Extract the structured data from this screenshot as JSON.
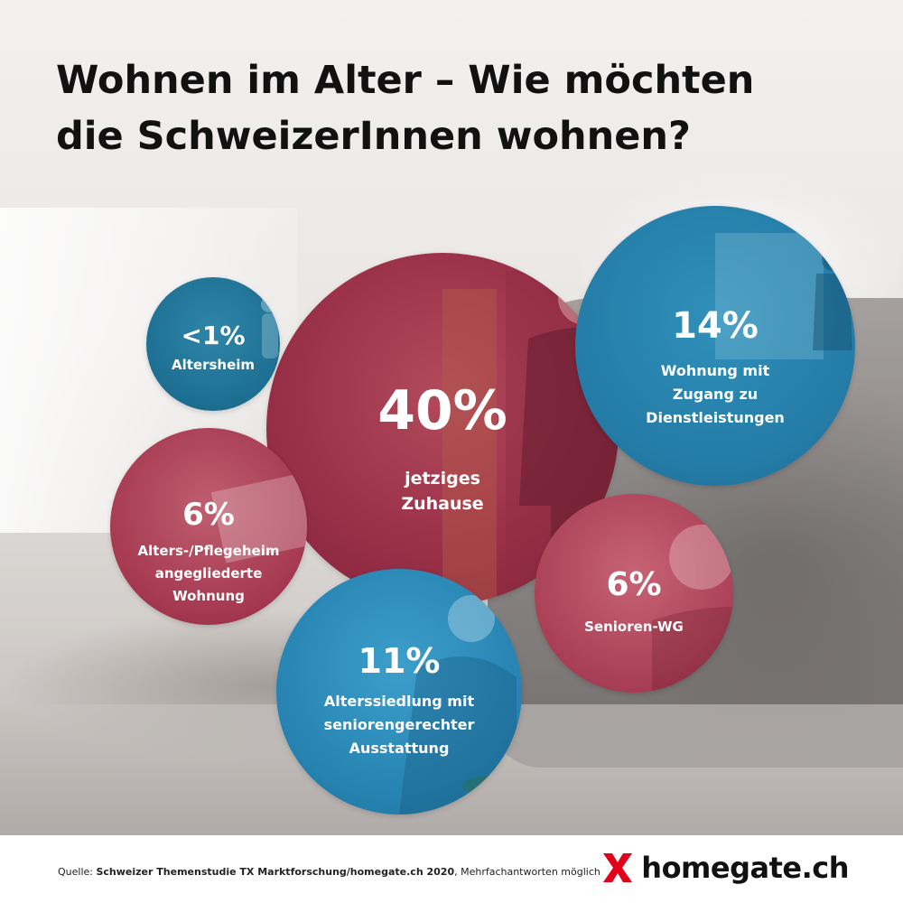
{
  "title": {
    "line1": "Wohnen im Alter – Wie möchten",
    "line2": "die SchweizerInnen wohnen?"
  },
  "bubbles": {
    "zuhause": {
      "percent": "40%",
      "label": [
        "jetziges",
        "Zuhause"
      ],
      "color": "#9a3149"
    },
    "altersheim": {
      "percent": "<1%",
      "label": [
        "Altersheim"
      ],
      "color": "#1d6f92"
    },
    "dienstleistungen": {
      "percent": "14%",
      "label": [
        "Wohnung mit",
        "Zugang zu",
        "Dienstleistungen"
      ],
      "color": "#237ba6"
    },
    "pflegeheim": {
      "percent": "6%",
      "label": [
        "Alters-/Pflegeheim",
        "angegliederte",
        "Wohnung"
      ],
      "color": "#a73b52"
    },
    "alterssiedlung": {
      "percent": "11%",
      "label": [
        "Alterssiedlung mit",
        "seniorengerechter",
        "Ausstattung"
      ],
      "color": "#2784b2"
    },
    "senioren_wg": {
      "percent": "6%",
      "label": [
        "Senioren-WG"
      ],
      "color": "#ac4258"
    }
  },
  "footer": {
    "source_prefix": "Quelle: ",
    "source_bold": "Schweizer Themenstudie TX Marktforschung/homegate.ch 2020",
    "source_suffix": ", Mehrfachantworten möglich",
    "brand": "homegate.ch",
    "brand_color": "#e3001b"
  }
}
